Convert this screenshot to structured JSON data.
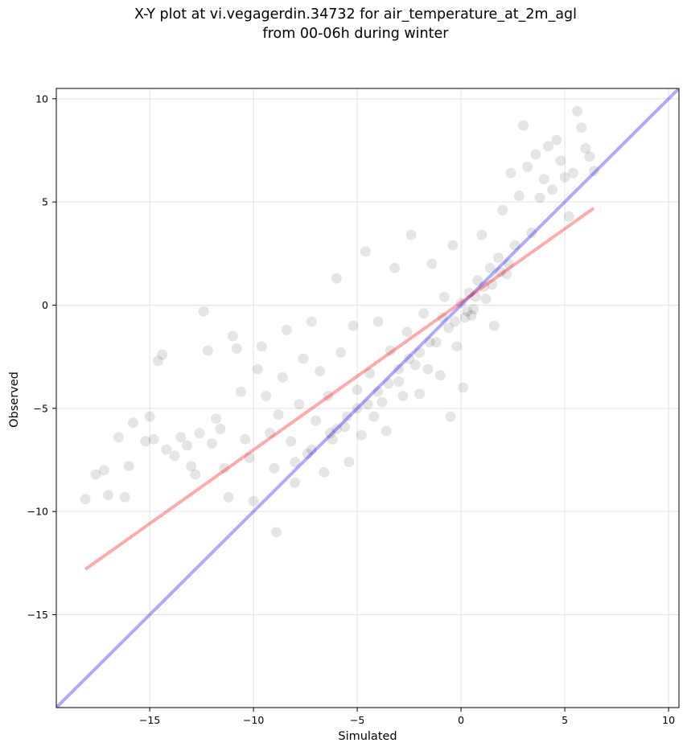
{
  "chart_data": {
    "type": "scatter",
    "title_line1": "X-Y plot at vi.vegagerdin.34732 for air_temperature_at_2m_agl",
    "title_line2": "from 00-06h during winter",
    "xlabel": "Simulated",
    "ylabel": "Observed",
    "xlim": [
      -19.5,
      10.5
    ],
    "ylim": [
      -19.5,
      10.5
    ],
    "xticks": [
      -15,
      -10,
      -5,
      0,
      5,
      10
    ],
    "yticks": [
      -15,
      -10,
      -5,
      0,
      5,
      10
    ],
    "xtick_labels": [
      "−15",
      "−10",
      "−5",
      "0",
      "5",
      "10"
    ],
    "ytick_labels": [
      "−15",
      "−10",
      "−5",
      "0",
      "5",
      "10"
    ],
    "grid": true,
    "point_color": "#000000",
    "identity_line": {
      "color": "#0000ff",
      "x": [
        -19.5,
        10.5
      ],
      "y": [
        -19.5,
        10.5
      ]
    },
    "fit_line": {
      "color": "#ff0000",
      "x": [
        -18.1,
        6.4
      ],
      "y": [
        -12.8,
        4.7
      ]
    },
    "points": [
      [
        -18.1,
        -9.4
      ],
      [
        -17.6,
        -8.2
      ],
      [
        -17.2,
        -8.0
      ],
      [
        -17.0,
        -9.2
      ],
      [
        -16.5,
        -6.4
      ],
      [
        -16.2,
        -9.3
      ],
      [
        -16.0,
        -7.8
      ],
      [
        -15.8,
        -5.7
      ],
      [
        -15.2,
        -6.6
      ],
      [
        -15.0,
        -5.4
      ],
      [
        -14.8,
        -6.5
      ],
      [
        -14.6,
        -2.7
      ],
      [
        -14.4,
        -2.4
      ],
      [
        -14.2,
        -7.0
      ],
      [
        -13.8,
        -7.3
      ],
      [
        -13.5,
        -6.4
      ],
      [
        -13.2,
        -6.8
      ],
      [
        -13.0,
        -7.8
      ],
      [
        -12.8,
        -8.2
      ],
      [
        -12.6,
        -6.2
      ],
      [
        -12.4,
        -0.3
      ],
      [
        -12.2,
        -2.2
      ],
      [
        -12.0,
        -6.7
      ],
      [
        -11.8,
        -5.5
      ],
      [
        -11.6,
        -6.0
      ],
      [
        -11.4,
        -7.9
      ],
      [
        -11.2,
        -9.3
      ],
      [
        -11.0,
        -1.5
      ],
      [
        -10.8,
        -2.1
      ],
      [
        -10.6,
        -4.2
      ],
      [
        -10.4,
        -6.5
      ],
      [
        -10.2,
        -7.4
      ],
      [
        -10.0,
        -9.5
      ],
      [
        -9.8,
        -3.1
      ],
      [
        -9.6,
        -2.0
      ],
      [
        -9.4,
        -4.4
      ],
      [
        -9.2,
        -6.2
      ],
      [
        -9.0,
        -7.9
      ],
      [
        -8.9,
        -11.0
      ],
      [
        -8.8,
        -5.3
      ],
      [
        -8.6,
        -3.5
      ],
      [
        -8.4,
        -1.2
      ],
      [
        -8.2,
        -6.6
      ],
      [
        -8.0,
        -8.6
      ],
      [
        -7.8,
        -4.8
      ],
      [
        -7.6,
        -2.6
      ],
      [
        -7.4,
        -7.2
      ],
      [
        -7.2,
        -0.8
      ],
      [
        -7.0,
        -5.6
      ],
      [
        -6.8,
        -3.2
      ],
      [
        -6.6,
        -8.1
      ],
      [
        -6.4,
        -4.4
      ],
      [
        -6.2,
        -6.5
      ],
      [
        -6.0,
        1.3
      ],
      [
        -5.8,
        -2.3
      ],
      [
        -5.6,
        -5.9
      ],
      [
        -5.4,
        -7.6
      ],
      [
        -5.2,
        -1.0
      ],
      [
        -5.0,
        -4.1
      ],
      [
        -4.8,
        -6.3
      ],
      [
        -4.6,
        2.6
      ],
      [
        -4.4,
        -3.3
      ],
      [
        -4.2,
        -5.4
      ],
      [
        -4.0,
        -0.8
      ],
      [
        -3.8,
        -4.7
      ],
      [
        -3.6,
        -6.1
      ],
      [
        -3.4,
        -2.2
      ],
      [
        -3.2,
        1.8
      ],
      [
        -3.0,
        -3.7
      ],
      [
        -2.8,
        -4.4
      ],
      [
        -2.6,
        -1.3
      ],
      [
        -2.4,
        3.4
      ],
      [
        -2.2,
        -2.9
      ],
      [
        -2.0,
        -4.3
      ],
      [
        -1.8,
        -0.4
      ],
      [
        -1.6,
        -3.1
      ],
      [
        -1.4,
        2.0
      ],
      [
        -1.2,
        -1.8
      ],
      [
        -1.0,
        -3.4
      ],
      [
        -0.8,
        0.4
      ],
      [
        -0.6,
        -1.1
      ],
      [
        -0.5,
        -5.4
      ],
      [
        -0.4,
        2.9
      ],
      [
        -0.2,
        -2.0
      ],
      [
        0.0,
        0.1
      ],
      [
        0.1,
        -4.0
      ],
      [
        0.2,
        -0.6
      ],
      [
        0.4,
        0.6
      ],
      [
        0.6,
        -0.2
      ],
      [
        0.8,
        1.2
      ],
      [
        1.0,
        3.4
      ],
      [
        1.2,
        0.3
      ],
      [
        1.4,
        1.8
      ],
      [
        1.6,
        -1.0
      ],
      [
        1.8,
        2.3
      ],
      [
        2.0,
        4.6
      ],
      [
        2.2,
        1.5
      ],
      [
        2.4,
        6.4
      ],
      [
        2.6,
        2.9
      ],
      [
        2.8,
        5.3
      ],
      [
        3.0,
        8.7
      ],
      [
        3.2,
        6.7
      ],
      [
        3.4,
        3.5
      ],
      [
        3.6,
        7.3
      ],
      [
        3.8,
        5.2
      ],
      [
        4.0,
        6.1
      ],
      [
        4.2,
        7.7
      ],
      [
        4.4,
        5.6
      ],
      [
        4.6,
        8.0
      ],
      [
        4.8,
        7.0
      ],
      [
        5.0,
        6.2
      ],
      [
        5.2,
        4.3
      ],
      [
        5.4,
        6.4
      ],
      [
        5.6,
        9.4
      ],
      [
        5.8,
        8.6
      ],
      [
        6.0,
        7.6
      ],
      [
        6.2,
        7.2
      ],
      [
        6.4,
        6.5
      ],
      [
        -0.3,
        -0.8
      ],
      [
        0.3,
        -0.3
      ],
      [
        -1.5,
        -1.8
      ],
      [
        -2.5,
        -2.6
      ],
      [
        -3.5,
        -3.8
      ],
      [
        -4.5,
        -4.8
      ],
      [
        -5.5,
        -5.4
      ],
      [
        -6.3,
        -6.2
      ],
      [
        -7.2,
        -7.0
      ],
      [
        -8.0,
        -7.6
      ],
      [
        1.5,
        1.0
      ],
      [
        2.3,
        2.0
      ],
      [
        -0.9,
        -0.6
      ],
      [
        0.7,
        0.4
      ],
      [
        1.9,
        1.6
      ],
      [
        -2.0,
        -2.3
      ],
      [
        -3.0,
        -3.1
      ],
      [
        -4.0,
        -4.2
      ],
      [
        -5.0,
        -5.0
      ],
      [
        -6.0,
        -6.0
      ],
      [
        0.5,
        -0.5
      ],
      [
        1.1,
        0.9
      ]
    ]
  }
}
